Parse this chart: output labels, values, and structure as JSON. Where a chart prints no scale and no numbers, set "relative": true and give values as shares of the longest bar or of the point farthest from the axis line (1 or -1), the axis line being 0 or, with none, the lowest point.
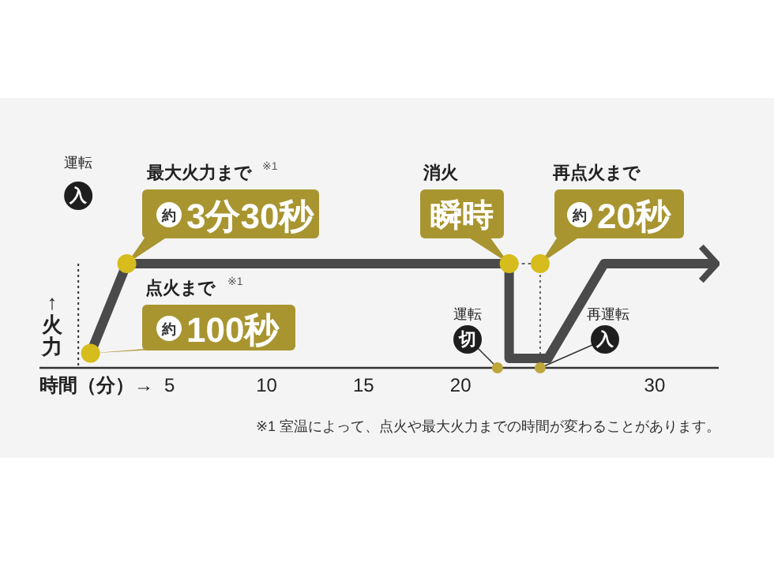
{
  "chart_data": {
    "type": "line",
    "relative": true,
    "xlabel": "時間（分）→",
    "ylabel": "↑火力",
    "xlim": [
      -1.7,
      33.3
    ],
    "xticks": [
      5,
      10,
      15,
      20,
      30
    ],
    "grid": false,
    "line_style": "solid",
    "x": [
      0.93,
      2.8,
      22.5,
      22.5,
      24.5,
      27.4,
      33.2
    ],
    "series": [
      {
        "color": "#4a4a4a",
        "marker": "none",
        "values": [
          0.14,
          1,
          1,
          0.09,
          0.09,
          1,
          1
        ]
      },
      {
        "type": "scatter",
        "marker": "circle",
        "color": "#d6bc1c",
        "x": [
          0.93,
          2.8,
          22.5,
          24.1
        ],
        "values": [
          0.14,
          1,
          1,
          1
        ]
      },
      {
        "type": "scatter",
        "marker": "circle",
        "color": "#bfa63a",
        "x": [
          21.9,
          24.1
        ],
        "values": [
          0,
          0
        ]
      }
    ],
    "ref_lines": [
      {
        "axis": "x",
        "value": 0.3,
        "color": "#333333",
        "line_style": "dotted"
      },
      {
        "axis": "x",
        "value": 24.1,
        "color": "#666666",
        "line_style": "dotted"
      }
    ],
    "annotations": [
      "運転",
      "入",
      "最大火力まで",
      "※1",
      "約",
      "3分30秒",
      "点火まで",
      "※1",
      "約",
      "100秒",
      "消火",
      "瞬時",
      "再点火まで",
      "約",
      "20秒",
      "運転",
      "切",
      "再運転",
      "入",
      "※1 室温によって、点火や最大火力までの時間が変わることがあります。"
    ]
  }
}
